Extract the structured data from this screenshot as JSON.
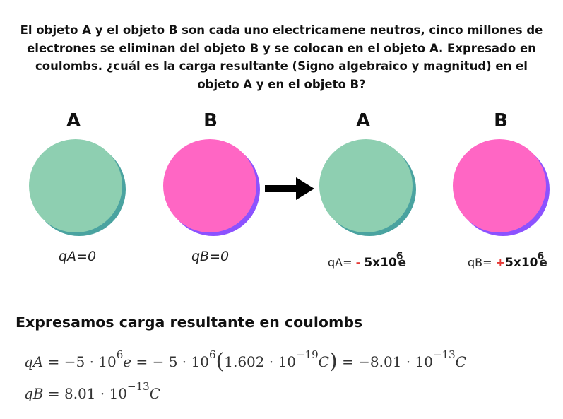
{
  "question": "El objeto A y el objeto B son cada uno electricamene neutros, cinco millones de electrones se eliminan del objeto B y se colocan en el objeto A. Expresado en coulombs. ¿cuál es la carga resultante (Signo algebraico y magnitud) en el objeto A y en el objeto B?",
  "before": {
    "label_a": "A",
    "label_b": "B",
    "charge_a": "qA=0",
    "charge_b": "qB=0"
  },
  "after": {
    "label_a": "A",
    "label_b": "B",
    "charge_a": {
      "prefix": "qA= ",
      "sign": "-",
      "magnitude": "5x10",
      "exponent": "6",
      "unit": "e"
    },
    "charge_b": {
      "prefix": "qB= ",
      "sign": "+",
      "magnitude": "5x10",
      "exponent": "6",
      "unit": "e"
    }
  },
  "colors": {
    "object_a": "#8ecfb1",
    "object_a_shadow": "#4aa3a0",
    "object_b": "#ff66c4",
    "object_b_shadow": "#8c52ff",
    "sign": "#e53935"
  },
  "results_title": "Expresamos carga resultante en coulombs",
  "equations": {
    "qa": {
      "lhs": "qA",
      "eq1": "= −5 · 10",
      "exp1": "6",
      "e": "e",
      "eq2": "= − 5 · 10",
      "exp2": "6",
      "paren_open": "(",
      "inner": "1.602 · 10",
      "exp3": "−19",
      "unit1": "C",
      "paren_close": ")",
      "eq3": "= −8.01 · 10",
      "exp4": "−13",
      "unit2": "C"
    },
    "qb": {
      "lhs": "qB",
      "eq1": "= 8.01 · 10",
      "exp1": "−13",
      "unit": "C"
    }
  }
}
